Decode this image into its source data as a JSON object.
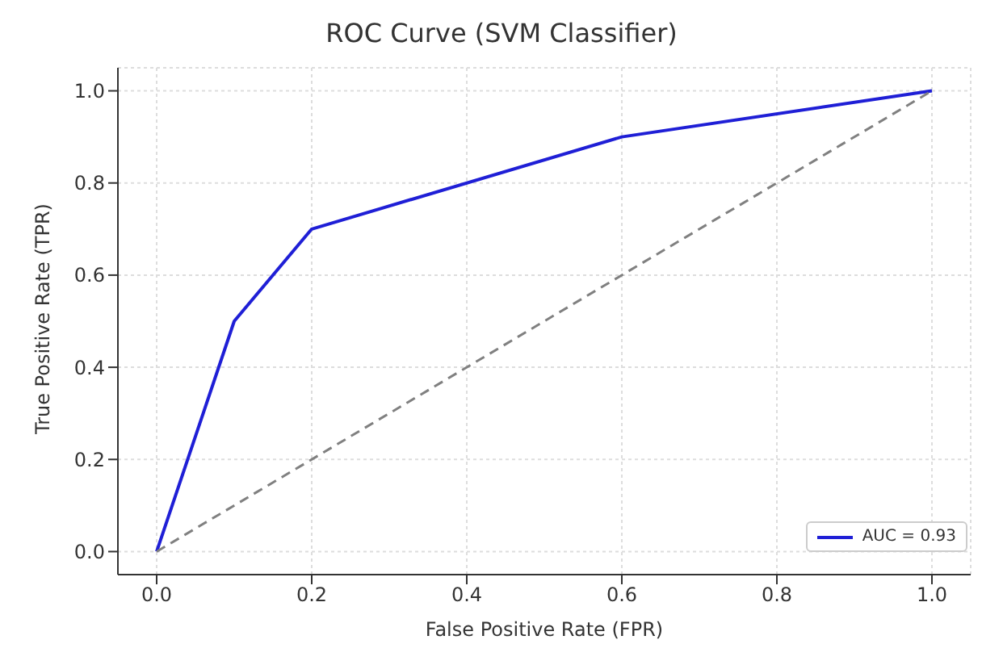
{
  "chart_data": {
    "type": "line",
    "title": "ROC Curve (SVM Classifier)",
    "xlabel": "False Positive Rate (FPR)",
    "ylabel": "True Positive Rate (TPR)",
    "series": [
      {
        "name": "AUC = 0.93",
        "color": "#1f1fd6",
        "x": [
          0,
          0.1,
          0.2,
          0.6,
          1
        ],
        "values": [
          0,
          0.5,
          0.7,
          0.9,
          1
        ],
        "line_style": "solid"
      },
      {
        "color": "#808080",
        "x": [
          0,
          1
        ],
        "values": [
          0,
          1
        ],
        "line_style": "dashed"
      }
    ],
    "xlim": [
      -0.05,
      1.05
    ],
    "ylim": [
      -0.05,
      1.05
    ],
    "xticks": [
      {
        "value": 0,
        "label": "0.0"
      },
      0.2,
      0.4,
      0.6,
      0.8,
      {
        "value": 1,
        "label": "1.0"
      }
    ],
    "yticks": [
      {
        "value": 0,
        "label": "0.0"
      },
      0.2,
      0.4,
      0.6,
      0.8,
      {
        "value": 1,
        "label": "1.0"
      }
    ],
    "grid": true,
    "legend": "bottom right",
    "marker": "none"
  }
}
